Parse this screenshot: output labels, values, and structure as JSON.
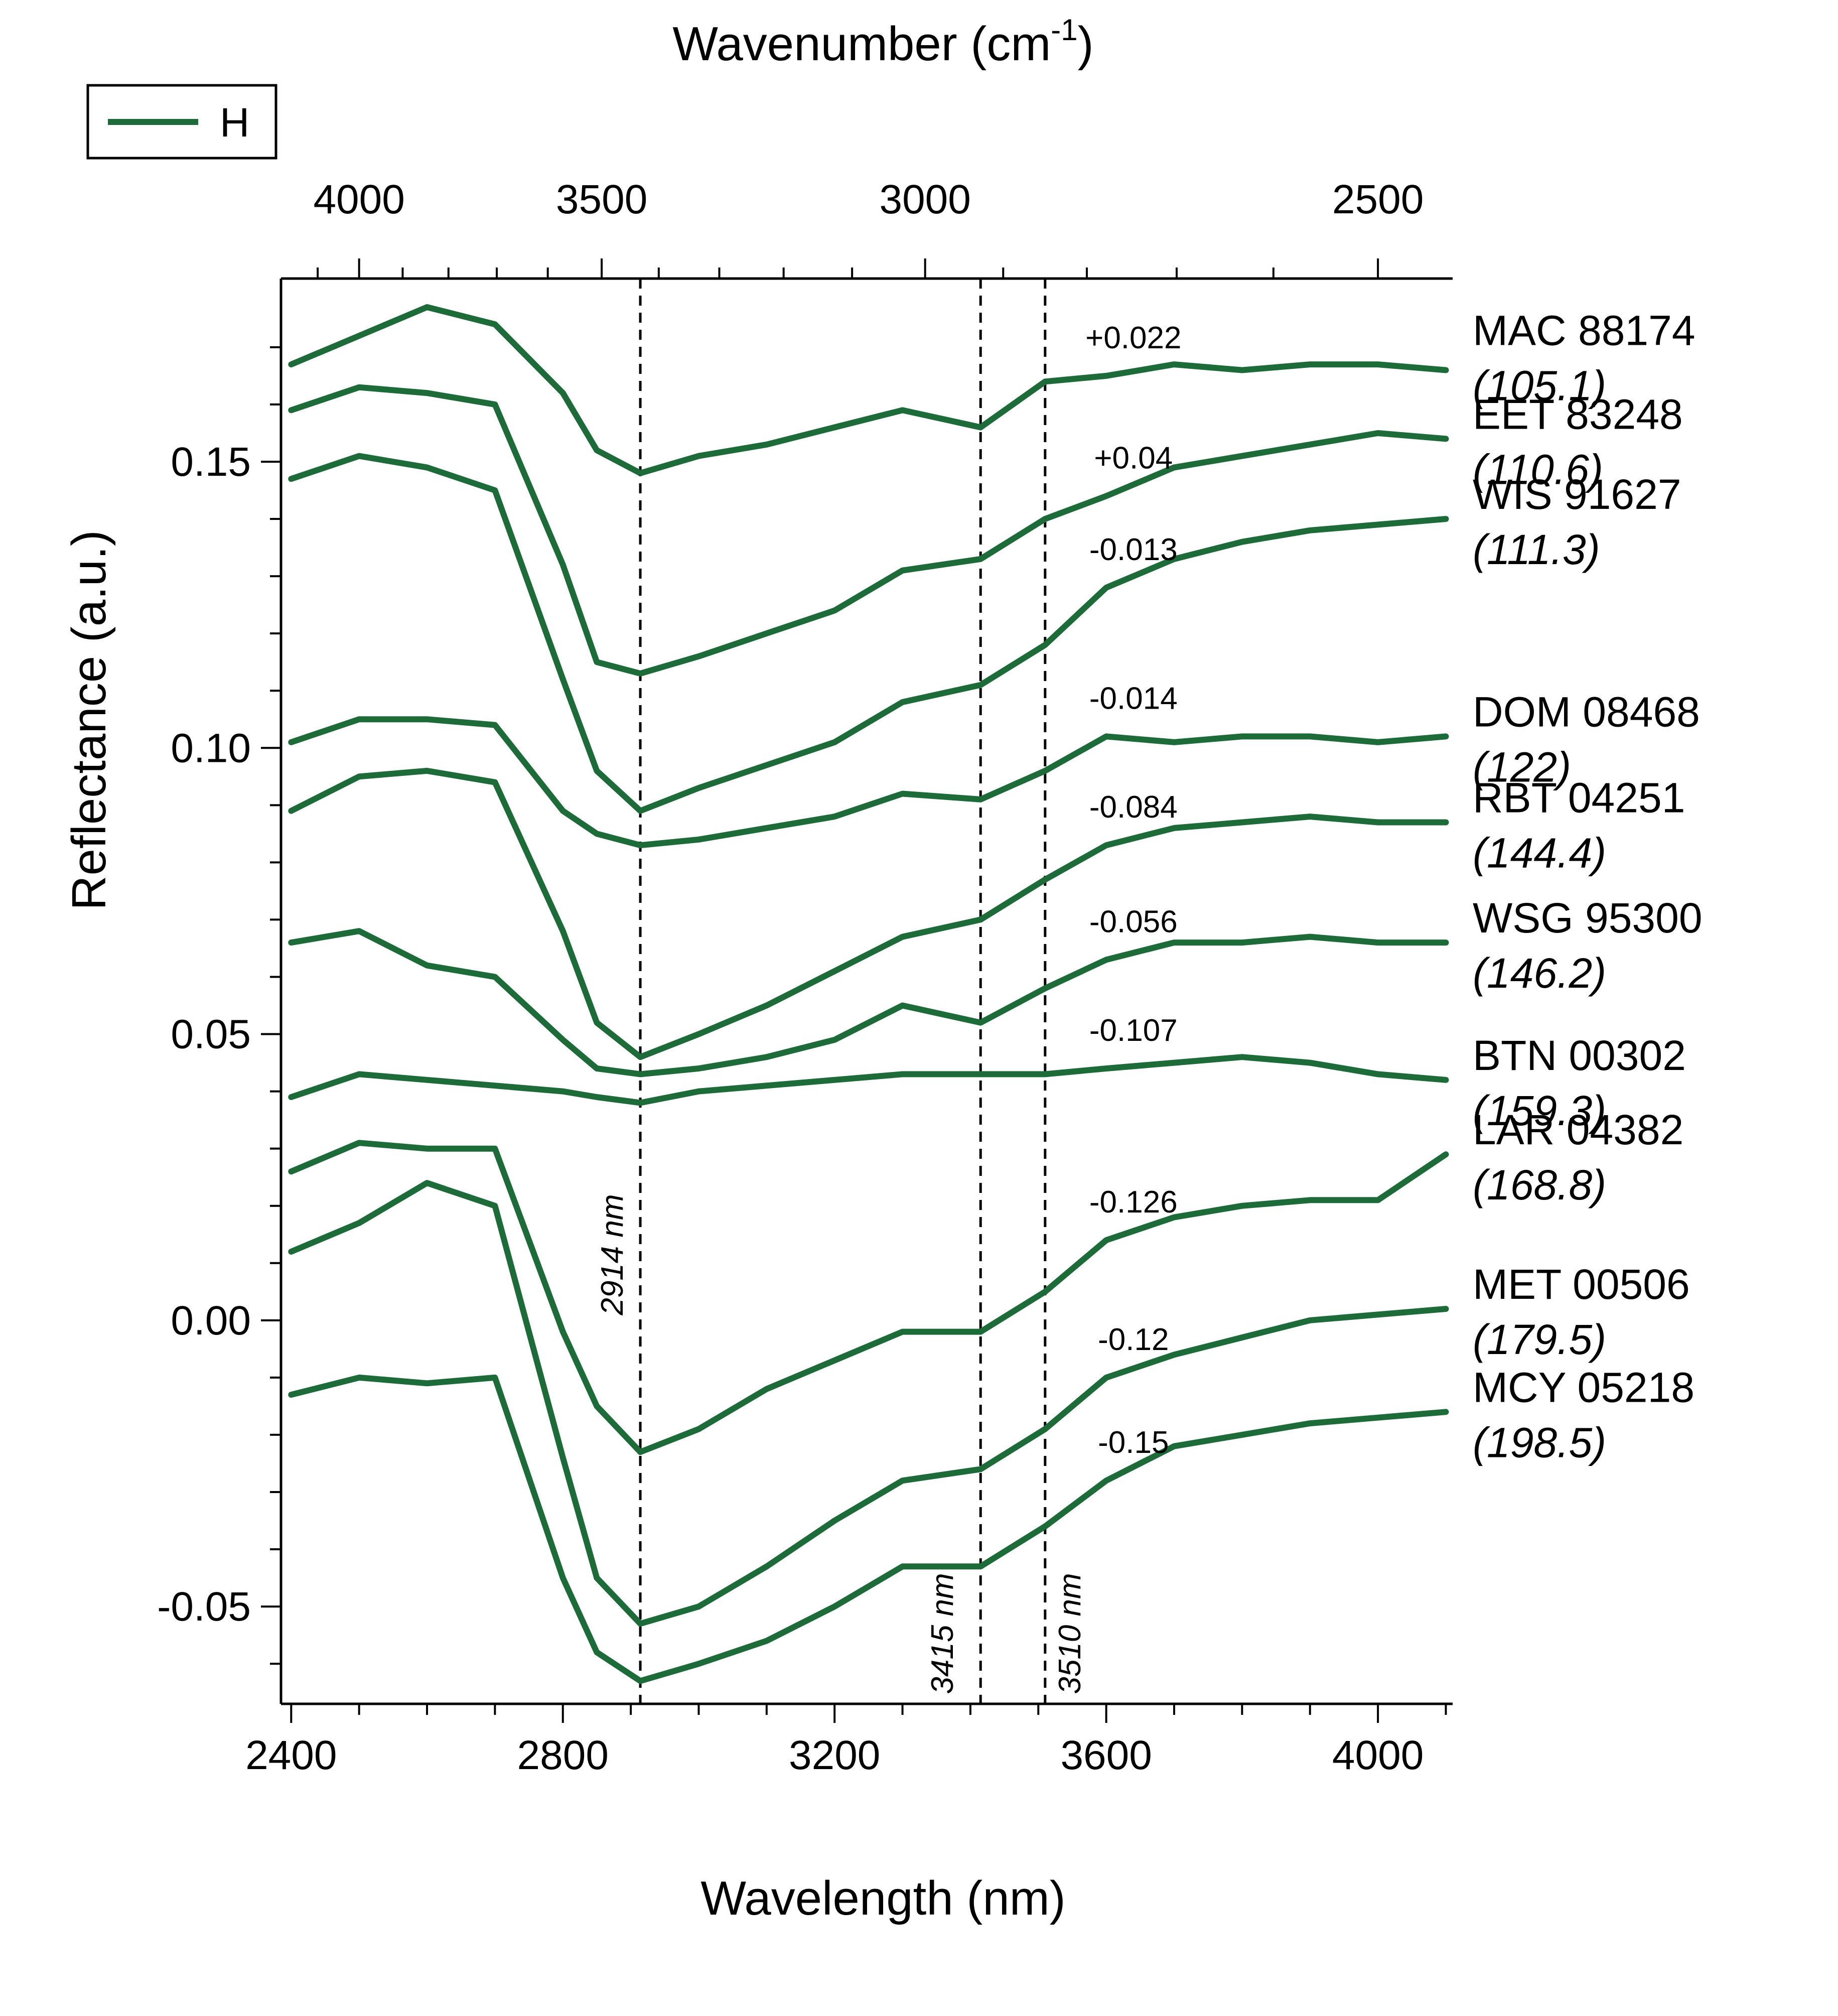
{
  "chart_data": {
    "type": "line",
    "title": "",
    "xlabel": "Wavelength (nm)",
    "ylabel": "Reflectance (a.u.)",
    "top_xlabel": "Wavenumber (cm",
    "top_xlabel_sup": "-1",
    "top_xlabel_end": ")",
    "xlim": [
      2385,
      4110
    ],
    "ylim": [
      -0.067,
      0.182
    ],
    "x_ticks": [
      2400,
      2800,
      3200,
      3600,
      4000
    ],
    "x_tick_labels": [
      "2400",
      "2800",
      "3200",
      "3600",
      "4000"
    ],
    "y_ticks": [
      0.15,
      0.1,
      0.05,
      0.0,
      -0.05
    ],
    "y_tick_labels": [
      "0.15",
      "0.10",
      "0.05",
      "0.00",
      "-0.05"
    ],
    "top_ticks": [
      4000,
      3500,
      3000,
      2500
    ],
    "top_tick_labels": [
      "4000",
      "3500",
      "3000",
      "2500"
    ],
    "legend": {
      "label": "H",
      "color": "#1e6b3a",
      "placement": "top-left"
    },
    "line_color": "#1e6b3a",
    "vlines": [
      {
        "x": 2914,
        "label": "2914 nm"
      },
      {
        "x": 3415,
        "label": "3415 nm"
      },
      {
        "x": 3510,
        "label": "3510 nm"
      }
    ],
    "x": [
      2400,
      2500,
      2600,
      2700,
      2800,
      2850,
      2914,
      3000,
      3100,
      3200,
      3300,
      3415,
      3510,
      3600,
      3700,
      3800,
      3900,
      4000,
      4100
    ],
    "series": [
      {
        "name": "MAC 88174",
        "sub": "(105.1)",
        "offset": "+0.022",
        "values": [
          0.167,
          0.172,
          0.177,
          0.174,
          0.162,
          0.152,
          0.148,
          0.151,
          0.153,
          0.156,
          0.159,
          0.156,
          0.164,
          0.165,
          0.167,
          0.166,
          0.167,
          0.167,
          0.166
        ]
      },
      {
        "name": "EET 83248",
        "sub": "(110.6)",
        "offset": "+0.04",
        "values": [
          0.159,
          0.163,
          0.162,
          0.16,
          0.132,
          0.115,
          0.113,
          0.116,
          0.12,
          0.124,
          0.131,
          0.133,
          0.14,
          0.144,
          0.149,
          0.151,
          0.153,
          0.155,
          0.154
        ]
      },
      {
        "name": "WIS 91627",
        "sub": "(111.3)",
        "offset": "-0.013",
        "values": [
          0.147,
          0.151,
          0.149,
          0.145,
          0.112,
          0.096,
          0.089,
          0.093,
          0.097,
          0.101,
          0.108,
          0.111,
          0.118,
          0.128,
          0.133,
          0.136,
          0.138,
          0.139,
          0.14
        ]
      },
      {
        "name": "DOM 08468",
        "sub": "(122)",
        "offset": "-0.014",
        "values": [
          0.101,
          0.105,
          0.105,
          0.104,
          0.089,
          0.085,
          0.083,
          0.084,
          0.086,
          0.088,
          0.092,
          0.091,
          0.096,
          0.102,
          0.101,
          0.102,
          0.102,
          0.101,
          0.102
        ]
      },
      {
        "name": "RBT 04251",
        "sub": "(144.4)",
        "offset": "-0.084",
        "values": [
          0.089,
          0.095,
          0.096,
          0.094,
          0.068,
          0.052,
          0.046,
          0.05,
          0.055,
          0.061,
          0.067,
          0.07,
          0.077,
          0.083,
          0.086,
          0.087,
          0.088,
          0.087,
          0.087
        ]
      },
      {
        "name": "WSG 95300",
        "sub": "(146.2)",
        "offset": "-0.056",
        "values": [
          0.066,
          0.068,
          0.062,
          0.06,
          0.049,
          0.044,
          0.043,
          0.044,
          0.046,
          0.049,
          0.055,
          0.052,
          0.058,
          0.063,
          0.066,
          0.066,
          0.067,
          0.066,
          0.066
        ]
      },
      {
        "name": "BTN 00302",
        "sub": "(159.3)",
        "offset": "-0.107",
        "values": [
          0.039,
          0.043,
          0.042,
          0.041,
          0.04,
          0.039,
          0.038,
          0.04,
          0.041,
          0.042,
          0.043,
          0.043,
          0.043,
          0.044,
          0.045,
          0.046,
          0.045,
          0.043,
          0.042
        ]
      },
      {
        "name": "LAR 04382",
        "sub": "(168.8)",
        "offset": "-0.126",
        "values": [
          0.026,
          0.031,
          0.03,
          0.03,
          -0.002,
          -0.015,
          -0.023,
          -0.019,
          -0.012,
          -0.007,
          -0.002,
          -0.002,
          0.005,
          0.014,
          0.018,
          0.02,
          0.021,
          0.021,
          0.029
        ]
      },
      {
        "name": "MET 00506",
        "sub": "(179.5)",
        "offset": "-0.12",
        "values": [
          0.012,
          0.017,
          0.024,
          0.02,
          -0.024,
          -0.045,
          -0.053,
          -0.05,
          -0.043,
          -0.035,
          -0.028,
          -0.026,
          -0.019,
          -0.01,
          -0.006,
          -0.003,
          0.0,
          0.001,
          0.002
        ]
      },
      {
        "name": "MCY 05218",
        "sub": "(198.5)",
        "offset": "-0.15",
        "values": [
          -0.013,
          -0.01,
          -0.011,
          -0.01,
          -0.045,
          -0.058,
          -0.063,
          -0.06,
          -0.056,
          -0.05,
          -0.043,
          -0.043,
          -0.036,
          -0.028,
          -0.022,
          -0.02,
          -0.018,
          -0.017,
          -0.016
        ]
      }
    ]
  }
}
